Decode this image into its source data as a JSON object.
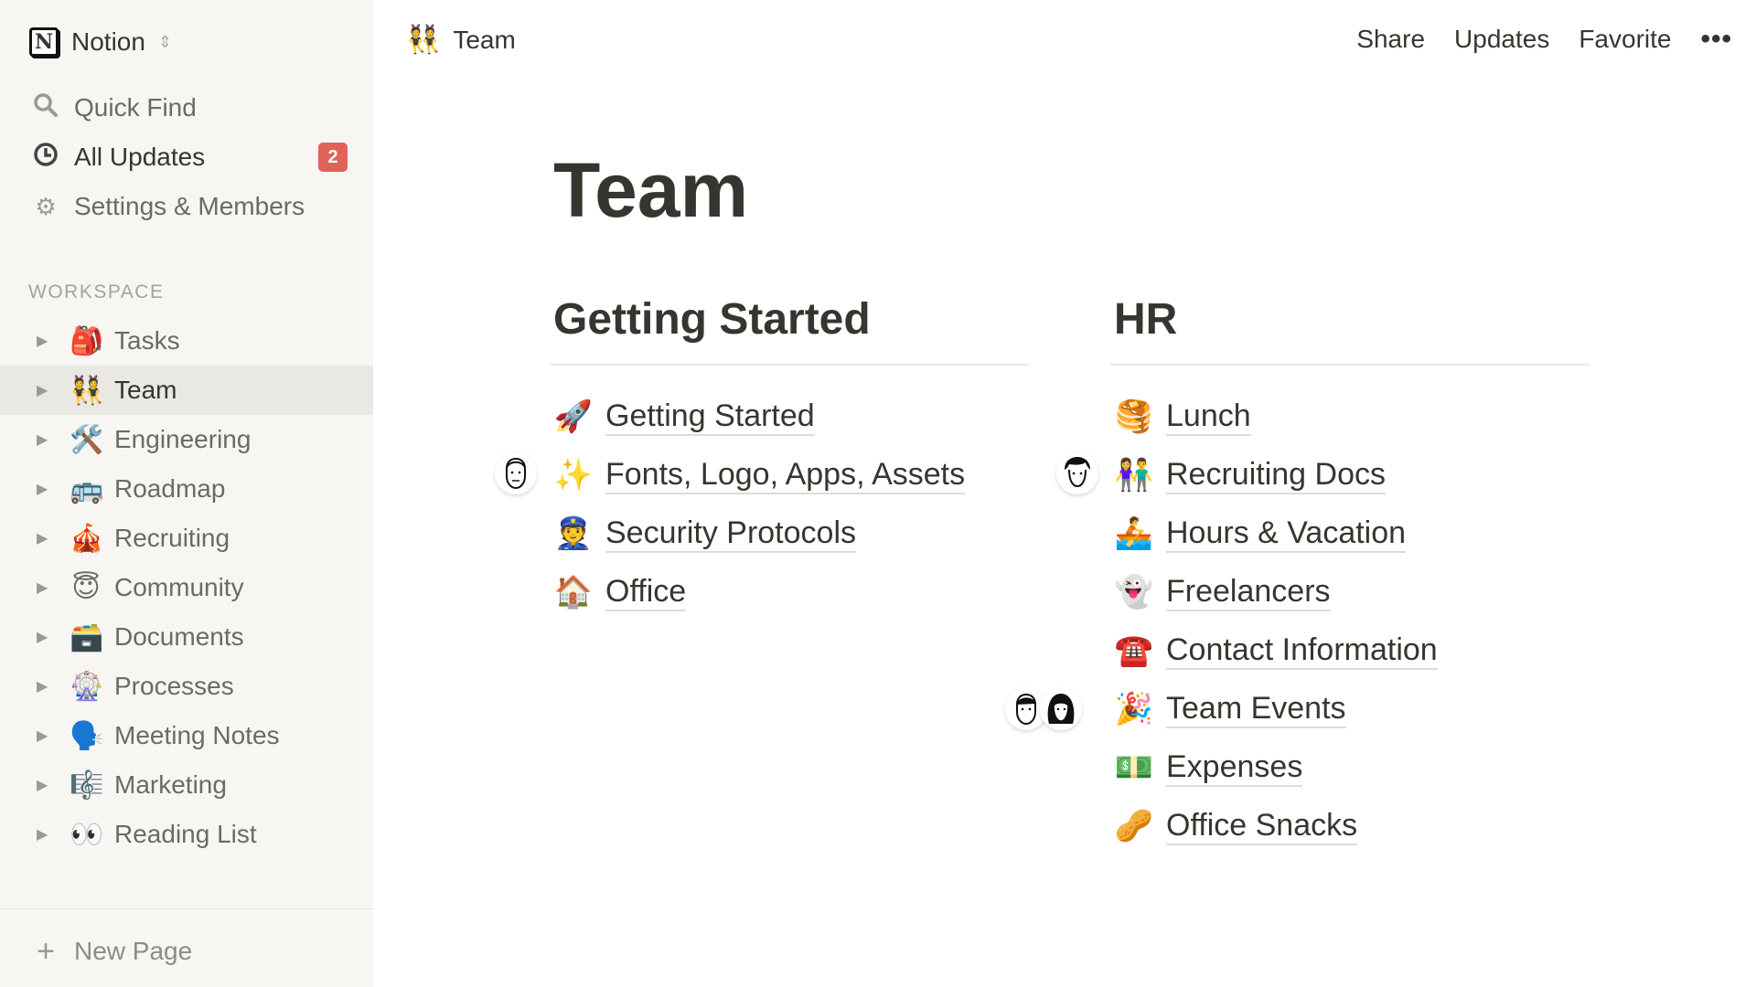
{
  "sidebar": {
    "workspace_name": "Notion",
    "quick_find": "Quick Find",
    "all_updates": "All Updates",
    "updates_badge": "2",
    "settings": "Settings & Members",
    "section_label": "WORKSPACE",
    "items": [
      {
        "emoji": "🎒",
        "label": "Tasks"
      },
      {
        "emoji": "👯",
        "label": "Team"
      },
      {
        "emoji": "🛠️",
        "label": "Engineering"
      },
      {
        "emoji": "🚌",
        "label": "Roadmap"
      },
      {
        "emoji": "🎪",
        "label": "Recruiting"
      },
      {
        "emoji": "😇",
        "label": "Community"
      },
      {
        "emoji": "🗃️",
        "label": "Documents"
      },
      {
        "emoji": "🎡",
        "label": "Processes"
      },
      {
        "emoji": "🗣️",
        "label": "Meeting Notes"
      },
      {
        "emoji": "🎼",
        "label": "Marketing"
      },
      {
        "emoji": "👀",
        "label": "Reading List"
      }
    ],
    "new_page": "New Page",
    "active_item": "Team",
    "badge_color": "#e16259"
  },
  "topbar": {
    "page_emoji": "👯",
    "page_title": "Team",
    "share": "Share",
    "updates": "Updates",
    "favorite": "Favorite",
    "more": "•••"
  },
  "page": {
    "title": "Team",
    "columns": [
      {
        "heading": "Getting Started",
        "links": [
          {
            "emoji": "🚀",
            "label": "Getting Started"
          },
          {
            "emoji": "✨",
            "label": "Fonts, Logo, Apps, Assets"
          },
          {
            "emoji": "👮",
            "label": "Security Protocols"
          },
          {
            "emoji": "🏠",
            "label": "Office"
          }
        ]
      },
      {
        "heading": "HR",
        "links": [
          {
            "emoji": "🥞",
            "label": "Lunch"
          },
          {
            "emoji": "👫",
            "label": "Recruiting Docs"
          },
          {
            "emoji": "🚣",
            "label": "Hours & Vacation"
          },
          {
            "emoji": "👻",
            "label": "Freelancers"
          },
          {
            "emoji": "☎️",
            "label": "Contact Information"
          },
          {
            "emoji": "🎉",
            "label": "Team Events"
          },
          {
            "emoji": "💵",
            "label": "Expenses"
          },
          {
            "emoji": "🥜",
            "label": "Office Snacks"
          }
        ]
      }
    ]
  }
}
